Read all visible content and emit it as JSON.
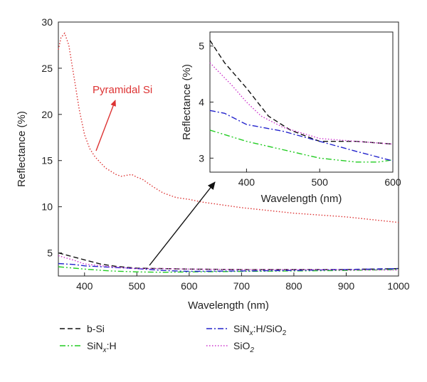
{
  "chart_data": {
    "type": "line",
    "main": {
      "xlabel": "Wavelength (nm)",
      "ylabel": "Reflectance (%)",
      "xlim": [
        350,
        1000
      ],
      "ylim": [
        2.5,
        30
      ],
      "xticks": [
        400,
        500,
        600,
        700,
        800,
        900,
        1000
      ],
      "yticks": [
        5,
        10,
        15,
        20,
        25,
        30
      ],
      "annotation": "Pyramidal Si",
      "series": [
        {
          "name": "b-Si",
          "style": "dashed",
          "color": "#111111",
          "x": [
            350,
            370,
            400,
            430,
            460,
            500,
            550,
            600,
            700,
            800,
            900,
            1000
          ],
          "y": [
            5.0,
            4.7,
            4.25,
            3.8,
            3.55,
            3.35,
            3.3,
            3.25,
            3.2,
            3.2,
            3.2,
            3.3
          ]
        },
        {
          "name": "SiN_x:H",
          "style": "dashdotdot",
          "color": "#22cc22",
          "x": [
            350,
            400,
            450,
            500,
            550,
            600,
            700,
            800,
            900,
            1000
          ],
          "y": [
            3.5,
            3.25,
            3.05,
            2.95,
            2.9,
            2.95,
            3.0,
            3.05,
            3.1,
            3.2
          ]
        },
        {
          "name": "SiN_x:H/SiO_2",
          "style": "dashdot",
          "color": "#2222cc",
          "x": [
            350,
            380,
            400,
            450,
            500,
            550,
            600,
            700,
            800,
            900,
            1000
          ],
          "y": [
            3.85,
            3.75,
            3.6,
            3.45,
            3.3,
            3.1,
            3.0,
            3.05,
            3.1,
            3.2,
            3.3
          ]
        },
        {
          "name": "SiO_2",
          "style": "dotted",
          "color": "#cc33cc",
          "x": [
            350,
            380,
            400,
            450,
            500,
            550,
            600,
            700,
            800,
            900,
            1000
          ],
          "y": [
            4.7,
            4.2,
            3.8,
            3.5,
            3.3,
            3.3,
            3.25,
            3.2,
            3.2,
            3.15,
            3.15
          ]
        },
        {
          "name": "Pyramidal Si",
          "style": "dotted",
          "color": "#dd3333",
          "x": [
            350,
            355,
            362,
            370,
            380,
            390,
            400,
            410,
            420,
            440,
            460,
            470,
            490,
            500,
            510,
            520,
            530,
            550,
            575,
            600,
            625,
            650,
            700,
            750,
            800,
            850,
            900,
            950,
            1000
          ],
          "y": [
            27.0,
            28.3,
            28.8,
            27.5,
            24.0,
            20.5,
            17.8,
            16.3,
            15.4,
            14.2,
            13.5,
            13.3,
            13.5,
            13.2,
            13.0,
            12.6,
            12.2,
            11.5,
            11.0,
            10.8,
            10.5,
            10.3,
            9.9,
            9.6,
            9.3,
            9.1,
            8.9,
            8.6,
            8.3
          ]
        }
      ]
    },
    "inset": {
      "xlabel": "Wavelength (nm)",
      "ylabel": "Reflectance (%)",
      "xlim": [
        350,
        600
      ],
      "ylim": [
        2.75,
        5.25
      ],
      "xticks": [
        400,
        500,
        600
      ],
      "yticks": [
        3,
        4,
        5
      ],
      "series": [
        {
          "name": "b-Si",
          "style": "dashed",
          "color": "#111111",
          "x": [
            350,
            370,
            400,
            430,
            460,
            500,
            550,
            580,
            600
          ],
          "y": [
            5.1,
            4.7,
            4.25,
            3.75,
            3.5,
            3.3,
            3.3,
            3.27,
            3.25
          ]
        },
        {
          "name": "SiN_x:H",
          "style": "dashdotdot",
          "color": "#22cc22",
          "x": [
            350,
            400,
            450,
            500,
            550,
            580,
            600
          ],
          "y": [
            3.5,
            3.3,
            3.15,
            3.0,
            2.93,
            2.93,
            2.97
          ]
        },
        {
          "name": "SiN_x:H/SiO_2",
          "style": "dashdot",
          "color": "#2222cc",
          "x": [
            350,
            370,
            400,
            450,
            500,
            550,
            600
          ],
          "y": [
            3.85,
            3.8,
            3.6,
            3.48,
            3.3,
            3.12,
            2.95
          ]
        },
        {
          "name": "SiO_2",
          "style": "dotted",
          "color": "#cc33cc",
          "x": [
            350,
            380,
            400,
            420,
            450,
            500,
            550,
            600
          ],
          "y": [
            4.7,
            4.3,
            4.0,
            3.75,
            3.55,
            3.35,
            3.3,
            3.25
          ]
        }
      ]
    }
  },
  "legend": [
    {
      "label": "b-Si",
      "series": "b-Si"
    },
    {
      "label": "SiN",
      "sub": "x",
      "suffix": ":H/SiO",
      "sub2": "2",
      "series": "SiN_x:H/SiO_2"
    },
    {
      "label": "SiN",
      "sub": "x",
      "suffix": ":H",
      "series": "SiN_x:H"
    },
    {
      "label": "SiO",
      "sub": "2",
      "series": "SiO_2"
    }
  ]
}
